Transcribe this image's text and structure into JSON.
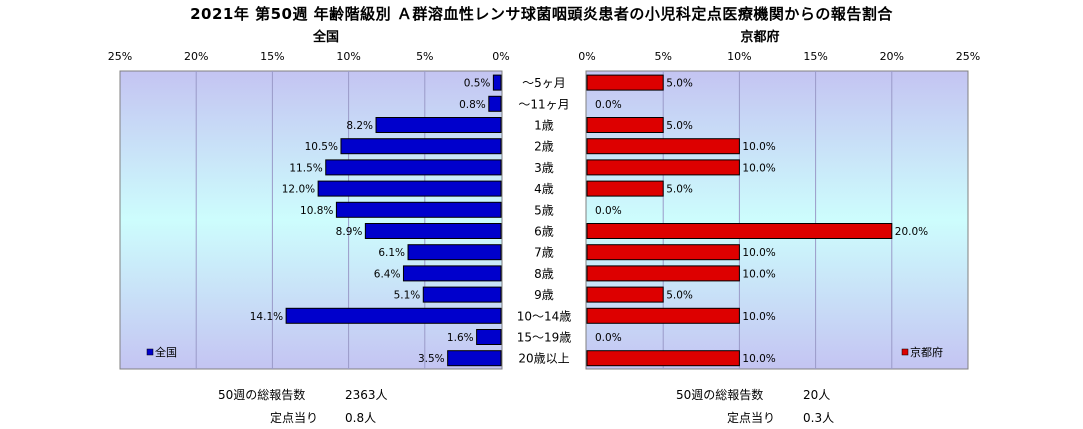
{
  "title": "2021年 第50週 年齢階級別 Ａ群溶血性レンサ球菌咽頭炎患者の小児科定点医療機関からの報告割合",
  "colors": {
    "national_bar": "#0000cc",
    "kyoto_bar": "#dd0000",
    "plot_gradient_top": "#c4c4f2",
    "plot_gradient_mid": "#cdfdfd",
    "plot_gradient_bottom": "#c4c4f2"
  },
  "chart_data": [
    {
      "type": "bar",
      "orientation": "horizontal",
      "direction": "right-to-left",
      "title": "全国",
      "categories": [
        "～5ヶ月",
        "～11ヶ月",
        "1歳",
        "2歳",
        "3歳",
        "4歳",
        "5歳",
        "6歳",
        "7歳",
        "8歳",
        "9歳",
        "10～14歳",
        "15～19歳",
        "20歳以上"
      ],
      "series": [
        {
          "name": "全国",
          "values": [
            0.5,
            0.8,
            8.2,
            10.5,
            11.5,
            12.0,
            10.8,
            8.9,
            6.1,
            6.4,
            5.1,
            14.1,
            1.6,
            3.5
          ]
        }
      ],
      "data_labels": [
        "0.5%",
        "0.8%",
        "8.2%",
        "10.5%",
        "11.5%",
        "12.0%",
        "10.8%",
        "8.9%",
        "6.1%",
        "6.4%",
        "5.1%",
        "14.1%",
        "1.6%",
        "3.5%"
      ],
      "xlim": [
        0,
        25
      ],
      "ticks": [
        "0%",
        "5%",
        "10%",
        "15%",
        "20%",
        "25%"
      ],
      "grid": true,
      "legend": "bottom-left"
    },
    {
      "type": "bar",
      "orientation": "horizontal",
      "direction": "left-to-right",
      "title": "京都府",
      "categories": [
        "～5ヶ月",
        "～11ヶ月",
        "1歳",
        "2歳",
        "3歳",
        "4歳",
        "5歳",
        "6歳",
        "7歳",
        "8歳",
        "9歳",
        "10～14歳",
        "15～19歳",
        "20歳以上"
      ],
      "series": [
        {
          "name": "京都府",
          "values": [
            5.0,
            0.0,
            5.0,
            10.0,
            10.0,
            5.0,
            0.0,
            20.0,
            10.0,
            10.0,
            5.0,
            10.0,
            0.0,
            10.0
          ]
        }
      ],
      "data_labels": [
        "5.0%",
        "0.0%",
        "5.0%",
        "10.0%",
        "10.0%",
        "5.0%",
        "0.0%",
        "20.0%",
        "10.0%",
        "10.0%",
        "5.0%",
        "10.0%",
        "0.0%",
        "10.0%"
      ],
      "xlim": [
        0,
        25
      ],
      "ticks": [
        "0%",
        "5%",
        "10%",
        "15%",
        "20%",
        "25%"
      ],
      "grid": true,
      "legend": "bottom-right"
    }
  ],
  "footer": {
    "national": {
      "total_label": "50週の総報告数",
      "total_value": "2363人",
      "per_label": "定点当り",
      "per_value": "0.8人"
    },
    "kyoto": {
      "total_label": "50週の総報告数",
      "total_value": "20人",
      "per_label": "定点当り",
      "per_value": "0.3人"
    }
  }
}
